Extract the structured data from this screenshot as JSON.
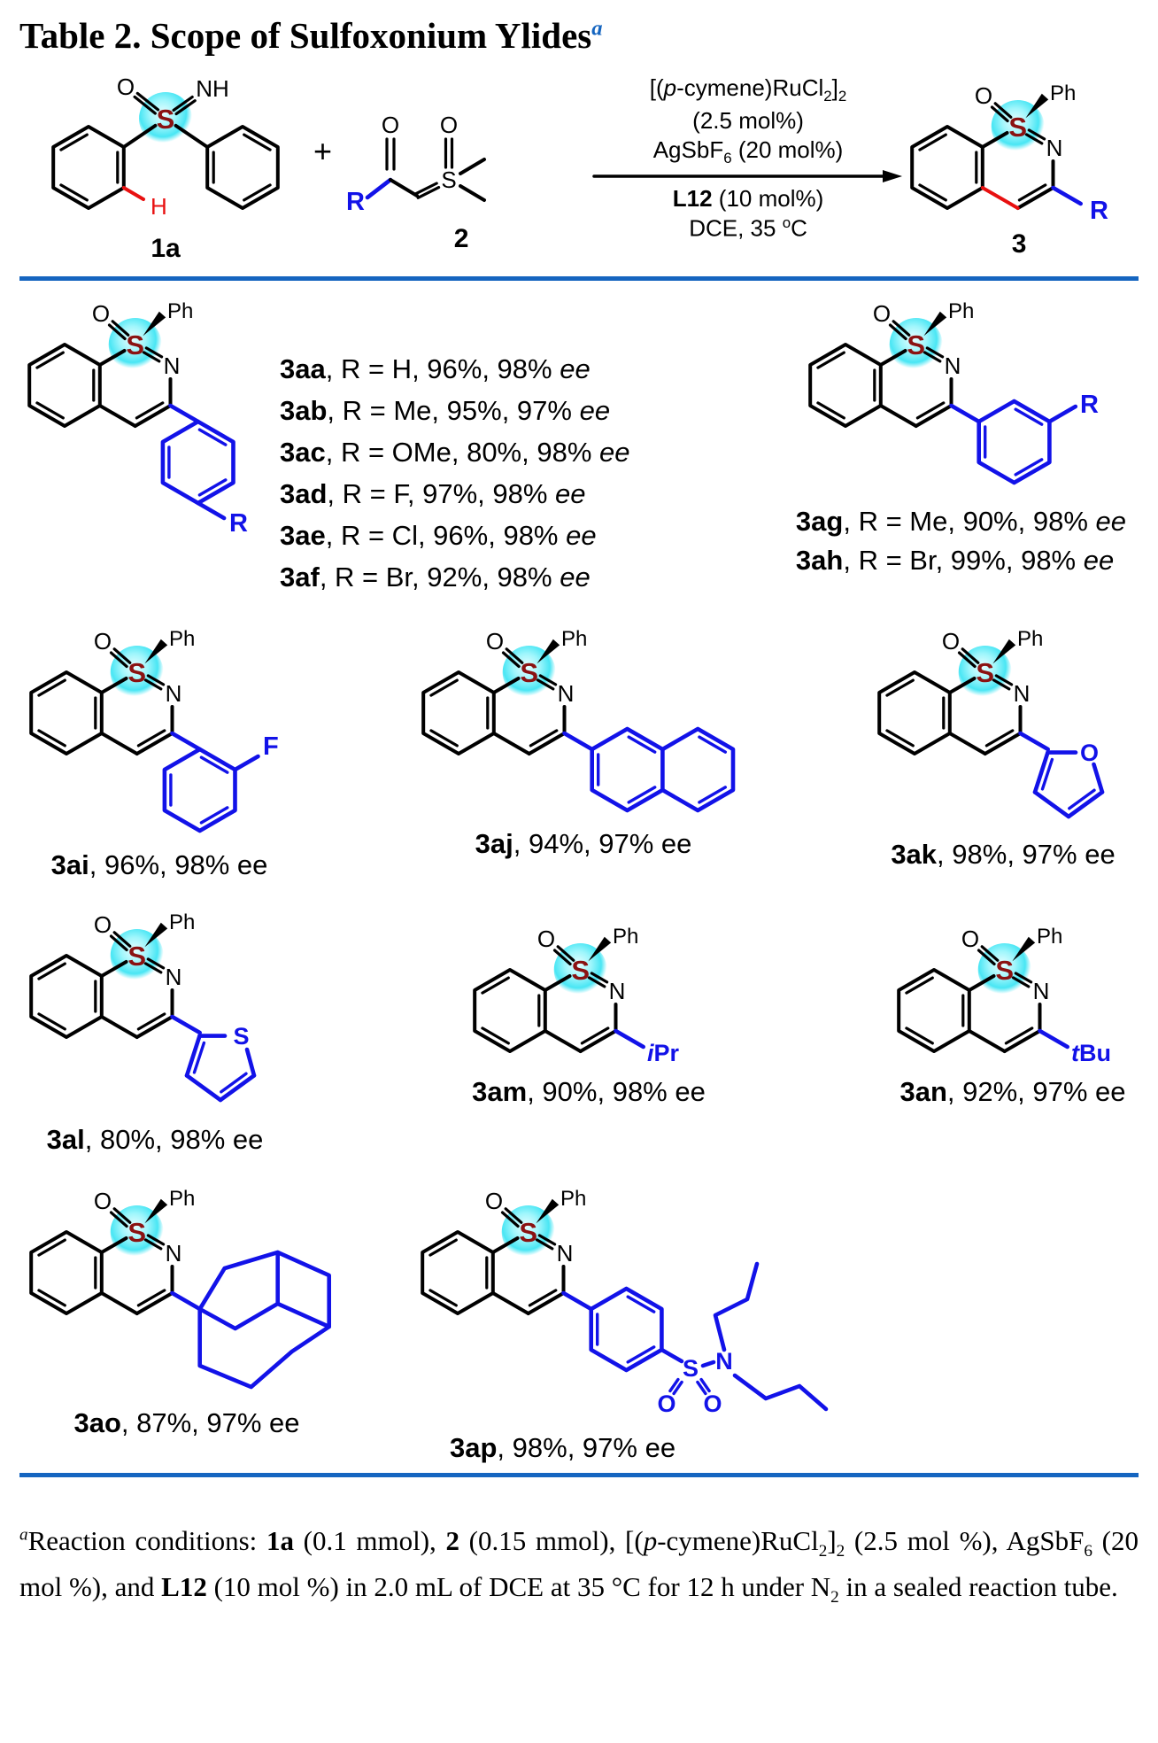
{
  "page": {
    "title_html": "Table 2. Scope of Sulfoxonium Ylides<sup><i>a</i></sup>"
  },
  "atoms": {
    "o": "O",
    "s": "S",
    "n": "N",
    "nh": "NH",
    "ph": "Ph",
    "h": "H",
    "r": "R",
    "f": "F",
    "i": "i",
    "pr": "Pr",
    "t": "t",
    "bu": "Bu"
  },
  "scheme": {
    "plus": "+",
    "reactant1_label": "1a",
    "reactant2_label": "2",
    "product_label": "3",
    "conditions_above": [
      "[(<i>p</i>-cymene)RuCl<sub>2</sub>]<sub>2</sub>",
      "(2.5 mol%)",
      "AgSbF<sub>6</sub> (20 mol%)"
    ],
    "conditions_below": [
      "<b>L12</b> (10 mol%)",
      "DCE, 35 <sup>o</sup>C"
    ]
  },
  "entries": {
    "group1": [
      "<b>3aa</b>, R = H, 96%, 98% <i>ee</i>",
      "<b>3ab</b>, R = Me, 95%, 97% <i>ee</i>",
      "<b>3ac</b>, R = OMe, 80%, 98% <i>ee</i>",
      "<b>3ad</b>, R = F, 97%, 98% <i>ee</i>",
      "<b>3ae</b>, R = Cl, 96%, 98% <i>ee</i>",
      "<b>3af</b>, R = Br, 92%, 98% <i>ee</i>"
    ],
    "group2": [
      "<b>3ag</b>, R = Me, 90%, 98% <i>ee</i>",
      "<b>3ah</b>, R = Br, 99%, 98% <i>ee</i>"
    ],
    "caption_3ai": "<b>3ai</b>, 96%, 98% ee",
    "caption_3aj": "<b>3aj</b>, 94%, 97% ee",
    "caption_3ak": "<b>3ak</b>, 98%, 97% ee",
    "caption_3al": "<b>3al</b>, 80%, 98% ee",
    "caption_3am": "<b>3am</b>, 90%, 98% ee",
    "caption_3an": "<b>3an</b>, 92%, 97% ee",
    "caption_3ao": "<b>3ao</b>, 87%, 97% ee",
    "caption_3ap": "<b>3ap</b>, 98%, 97% ee"
  },
  "footnote_html": "<sup><i>a</i></sup>Reaction conditions: <b>1a</b> (0.1 mmol), <b>2</b> (0.15 mmol), [(<i>p</i>-cymene)RuCl<sub>2</sub>]<sub>2</sub> (2.5 mol %), AgSbF<sub>6</sub> (20 mol %), and <b>L12</b> (10 mol %) in 2.0 mL of DCE at 35 °C for 12 h under N<sub>2</sub> in a sealed reaction tube.",
  "colors": {
    "structure_blue": "#1212E8",
    "sulfur_red": "#8B1212",
    "highlight_red": "#E81010",
    "divider_blue": "#1565C0",
    "glow_cyan": "#49E6F4"
  }
}
